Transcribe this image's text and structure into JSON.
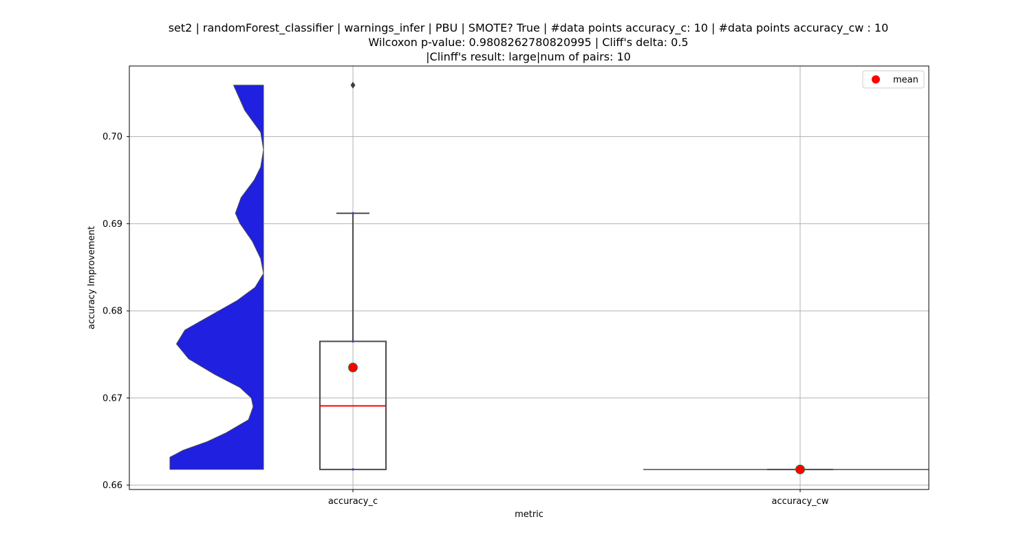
{
  "chart_data": {
    "type": "box",
    "title_lines": [
      "set2 | randomForest_classifier | warnings_infer | PBU | SMOTE? True | #data points accuracy_c: 10 | #data points accuracy_cw : 10",
      "Wilcoxon p-value: 0.9808262780820995 | Cliff's delta: 0.5",
      "|Clinff's result: large|num of pairs: 10"
    ],
    "xlabel": "metric",
    "ylabel": "accuracy Improvement",
    "ylim": [
      0.6595,
      0.7081
    ],
    "yticks": [
      0.66,
      0.67,
      0.68,
      0.69,
      0.7
    ],
    "ytick_labels": [
      "0.66",
      "0.67",
      "0.68",
      "0.69",
      "0.70"
    ],
    "categories": [
      "accuracy_c",
      "accuracy_cw"
    ],
    "grid": true,
    "legend": {
      "position": "top-right",
      "label": "mean"
    },
    "colors": {
      "violin_fill": "#2020e0",
      "median": "#ff0000",
      "mean_marker": "#ff0000",
      "mean_edge": "#2a7a2a",
      "box_edge": "#4a4a4a",
      "grid": "#b0b0b0"
    },
    "boxes": [
      {
        "category": "accuracy_c",
        "q1": 0.6618,
        "median": 0.6691,
        "q3": 0.6765,
        "whisker_low": 0.6618,
        "whisker_high": 0.6912,
        "mean": 0.6735,
        "outliers": [
          0.7059
        ],
        "points": [
          0.6618,
          0.6765,
          0.6912
        ]
      },
      {
        "category": "accuracy_cw",
        "q1": 0.6618,
        "median": 0.6618,
        "q3": 0.6618,
        "whisker_low": 0.6618,
        "whisker_high": 0.6618,
        "mean": 0.6618,
        "outliers": [],
        "points": []
      }
    ],
    "violin": {
      "category": "accuracy_c",
      "side": "left",
      "ymin": 0.6618,
      "ymax": 0.7059,
      "profile": [
        [
          0.6618,
          1.0
        ],
        [
          0.6632,
          1.0
        ],
        [
          0.664,
          0.86
        ],
        [
          0.665,
          0.6
        ],
        [
          0.666,
          0.4
        ],
        [
          0.6675,
          0.16
        ],
        [
          0.669,
          0.11
        ],
        [
          0.67,
          0.13
        ],
        [
          0.6712,
          0.25
        ],
        [
          0.6727,
          0.52
        ],
        [
          0.6745,
          0.8
        ],
        [
          0.6762,
          0.93
        ],
        [
          0.6778,
          0.84
        ],
        [
          0.6795,
          0.56
        ],
        [
          0.6812,
          0.28
        ],
        [
          0.6827,
          0.09
        ],
        [
          0.6843,
          0.0
        ],
        [
          0.686,
          0.03
        ],
        [
          0.688,
          0.12
        ],
        [
          0.69,
          0.25
        ],
        [
          0.6912,
          0.3
        ],
        [
          0.693,
          0.24
        ],
        [
          0.695,
          0.1
        ],
        [
          0.6965,
          0.03
        ],
        [
          0.6985,
          0.0
        ],
        [
          0.7005,
          0.03
        ],
        [
          0.703,
          0.2
        ],
        [
          0.7059,
          0.32
        ]
      ]
    }
  }
}
